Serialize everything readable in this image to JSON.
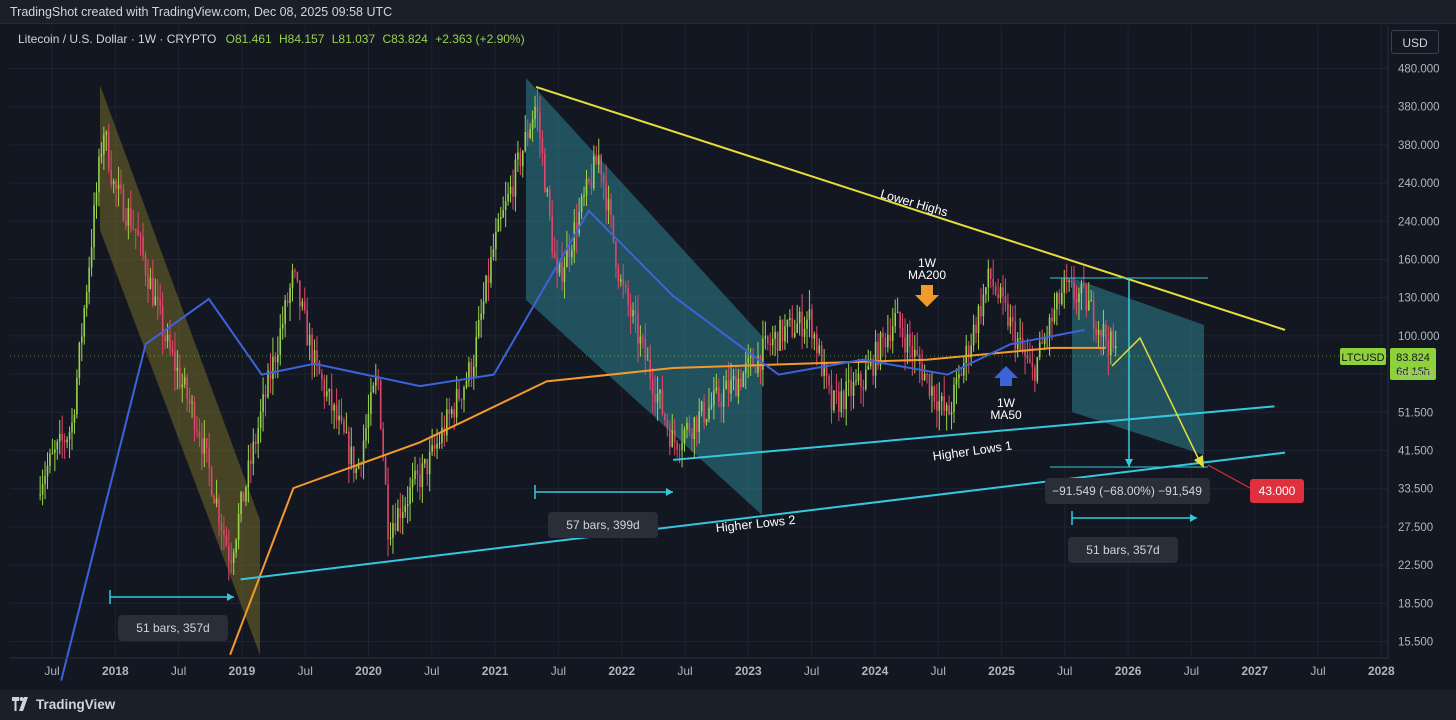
{
  "header": {
    "caption": "TradingShot created with TradingView.com, Dec 08, 2025 09:58 UTC"
  },
  "footer": {
    "brand": "TradingView"
  },
  "symbol": {
    "title": "Litecoin / U.S. Dollar · 1W · CRYPTO",
    "open": "O81.461",
    "high": "H84.157",
    "low": "L81.037",
    "close": "C83.824",
    "change": "+2.363 (+2.90%)",
    "currency": "USD",
    "ticker": "LTCUSD",
    "last_price": "83.824",
    "countdown": "6d 15h"
  },
  "colors": {
    "background": "#121722",
    "up_candle": "#9bd24b",
    "down_candle": "#e0466d",
    "ma200": "#f39a2c",
    "ma50": "#3d63d9",
    "trendline_highs": "#e6de3a",
    "trendline_lows": "#35c8dc",
    "channel_fill": "#2f8c98",
    "first_channel_fill": "#8a7a2a",
    "target_badge": "#e0303d",
    "price_badge": "#8fd13a"
  },
  "annotations": {
    "lower_highs": "Lower Highs",
    "higher_lows_1": "Higher Lows 1",
    "higher_lows_2": "Higher Lows 2",
    "ma200_label": [
      "1W",
      "MA200"
    ],
    "ma50_label": [
      "1W",
      "MA50"
    ],
    "range_1": "51 bars, 357d",
    "range_2": "57 bars, 399d",
    "range_3": "51 bars, 357d",
    "measure": "−91.549 (−68.00%) −91,549",
    "target": "43.000"
  },
  "chart_data": {
    "type": "candlestick",
    "title": "Litecoin / U.S. Dollar · 1W · CRYPTO",
    "timeframe": "1W",
    "y_scale": "log",
    "y_ticks": [
      "480.000",
      "380.000",
      "380.000",
      "240.000",
      "240.000",
      "160.000",
      "130.000",
      "100.000",
      "64.000",
      "51.500",
      "41.500",
      "33.500",
      "27.500",
      "22.500",
      "18.500",
      "15.500"
    ],
    "x_ticks": [
      "Jul",
      "2018",
      "Jul",
      "2019",
      "Jul",
      "2020",
      "Jul",
      "2021",
      "Jul",
      "2022",
      "Jul",
      "2023",
      "Jul",
      "2024",
      "Jul",
      "2025",
      "Jul",
      "2026",
      "Jul",
      "2027",
      "Jul",
      "2028"
    ],
    "price_path": [
      [
        "2017-06",
        40
      ],
      [
        "2017-09",
        55
      ],
      [
        "2017-12",
        330
      ],
      [
        "2018-01",
        230
      ],
      [
        "2018-03",
        180
      ],
      [
        "2018-06",
        90
      ],
      [
        "2018-09",
        55
      ],
      [
        "2018-12",
        25
      ],
      [
        "2019-03",
        60
      ],
      [
        "2019-06",
        135
      ],
      [
        "2019-08",
        80
      ],
      [
        "2019-12",
        42
      ],
      [
        "2020-02",
        75
      ],
      [
        "2020-03",
        30
      ],
      [
        "2020-07",
        45
      ],
      [
        "2020-11",
        80
      ],
      [
        "2021-01",
        160
      ],
      [
        "2021-05",
        380
      ],
      [
        "2021-07",
        130
      ],
      [
        "2021-11",
        280
      ],
      [
        "2022-01",
        130
      ],
      [
        "2022-06",
        50
      ],
      [
        "2022-12",
        72
      ],
      [
        "2023-04",
        95
      ],
      [
        "2023-07",
        105
      ],
      [
        "2023-09",
        62
      ],
      [
        "2023-12",
        72
      ],
      [
        "2024-03",
        105
      ],
      [
        "2024-08",
        58
      ],
      [
        "2024-12",
        135
      ],
      [
        "2025-04",
        75
      ],
      [
        "2025-07",
        125
      ],
      [
        "2025-09",
        118
      ],
      [
        "2025-12",
        83.824
      ]
    ],
    "ma200_1w": [
      [
        "2018-12",
        14
      ],
      [
        "2019-06",
        38
      ],
      [
        "2020-06",
        50
      ],
      [
        "2021-06",
        72
      ],
      [
        "2022-06",
        78
      ],
      [
        "2023-06",
        80
      ],
      [
        "2024-06",
        82
      ],
      [
        "2025-06",
        88
      ],
      [
        "2025-11",
        88
      ]
    ],
    "ma50_1w": [
      [
        "2017-08",
        12
      ],
      [
        "2018-04",
        90
      ],
      [
        "2018-10",
        118
      ],
      [
        "2019-03",
        75
      ],
      [
        "2019-08",
        80
      ],
      [
        "2020-06",
        70
      ],
      [
        "2021-01",
        75
      ],
      [
        "2021-10",
        200
      ],
      [
        "2022-06",
        120
      ],
      [
        "2023-04",
        75
      ],
      [
        "2023-12",
        82
      ],
      [
        "2024-08",
        75
      ],
      [
        "2025-02",
        90
      ],
      [
        "2025-09",
        98
      ]
    ],
    "trendlines": {
      "lower_highs": [
        [
          "2021-05",
          420
        ],
        [
          "2027-04",
          98
        ]
      ],
      "higher_lows_1": [
        [
          "2022-06",
          45
        ],
        [
          "2027-03",
          62
        ]
      ],
      "higher_lows_2": [
        [
          "2019-01",
          22
        ],
        [
          "2027-04",
          47
        ]
      ]
    },
    "measure": {
      "from": 134.549,
      "to": 43.0,
      "change": -91.549,
      "percent": -68.0
    },
    "projection_target": 43.0,
    "last_price": 83.824
  }
}
